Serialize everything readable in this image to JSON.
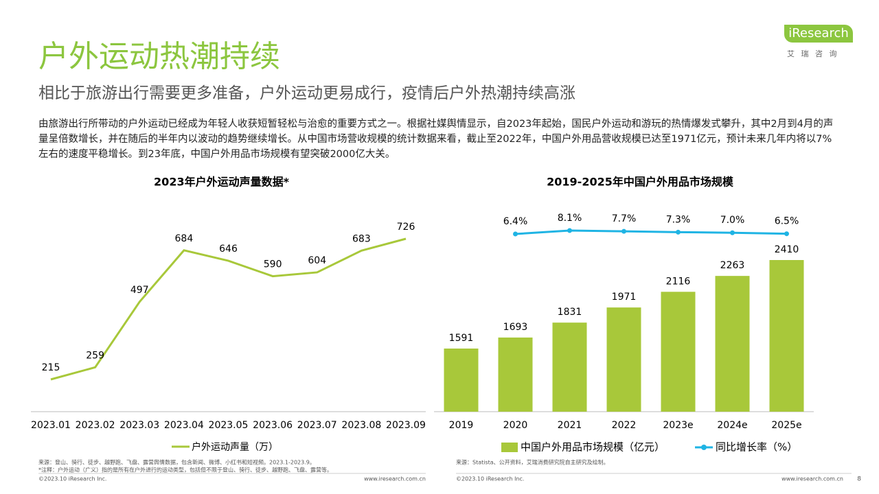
{
  "header": {
    "title": "户外运动热潮持续",
    "subtitle": "相比于旅游出行需要更多准备，户外运动更易成行，疫情后户外热潮持续高涨",
    "body": "由旅游出行所带动的户外运动已经成为年轻人收获短暂轻松与治愈的重要方式之一。根据社媒舆情显示，自2023年起始，国民户外运动和游玩的热情爆发式攀升，其中2月到4月的声量呈倍数增长，并在随后的半年内以波动的趋势继续增长。从中国市场营收规模的统计数据来看，截止至2022年，中国户外用品营收规模已达至1971亿元，预计未来几年内将以7%左右的速度平稳增长。到23年底，中国户外用品市场规模有望突破2000亿大关。"
  },
  "logo": {
    "brand": "iResearch",
    "cn": "艾 瑞 咨 询"
  },
  "chart_data": [
    {
      "type": "line",
      "title": "2023年户外运动声量数据*",
      "categories": [
        "2023.01",
        "2023.02",
        "2023.03",
        "2023.04",
        "2023.05",
        "2023.06",
        "2023.07",
        "2023.08",
        "2023.09"
      ],
      "series": [
        {
          "name": "户外运动声量（万）",
          "color": "#a8c83a",
          "values": [
            215,
            259,
            497,
            684,
            646,
            590,
            604,
            683,
            726
          ]
        }
      ]
    },
    {
      "type": "bar",
      "title": "2019-2025年中国户外用品市场规模",
      "categories": [
        "2019",
        "2020",
        "2021",
        "2022",
        "2023e",
        "2024e",
        "2025e"
      ],
      "series": [
        {
          "name": "中国户外用品市场规模（亿元）",
          "color": "#a8c83a",
          "values": [
            1591,
            1693,
            1831,
            1971,
            2116,
            2263,
            2410
          ]
        },
        {
          "name": "同比增长率（%）",
          "color": "#1fb4e4",
          "type": "line",
          "axis": "y2",
          "values": [
            null,
            6.4,
            8.1,
            7.7,
            7.3,
            7.0,
            6.5
          ],
          "value_labels": [
            null,
            "6.4%",
            "8.1%",
            "7.7%",
            "7.3%",
            "7.0%",
            "6.5%"
          ]
        }
      ]
    }
  ],
  "footer": {
    "left_source": "来源：登山、骑行、徒步、越野跑、飞盘、露营舆情数据，包含新闻、微博、小红书和短视频。2023.1-2023.9。",
    "left_note": "*注释：户外运动（广义）指的是所有在户外进行的运动类型，包括但不限于登山、骑行、徒步、越野跑、飞盘、露营等。",
    "left_copyright": "©2023.10 iResearch Inc.",
    "left_url": "www.iresearch.com.cn",
    "right_source": "来源：Statista、公开资料，艾瑞消费研究院自主研究及绘制。",
    "right_copyright": "©2023.10 iResearch Inc.",
    "right_url": "www.iresearch.com.cn",
    "page": "8"
  }
}
